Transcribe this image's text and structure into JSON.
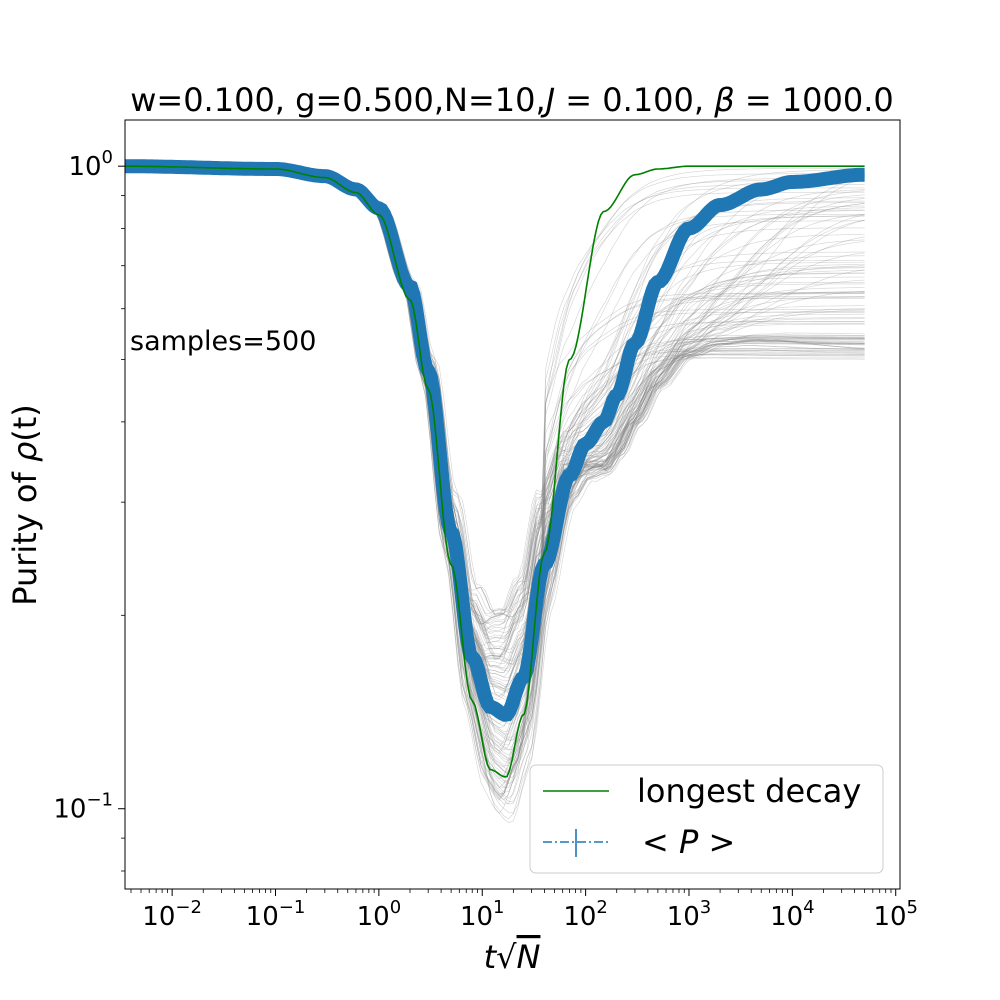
{
  "chart_data": {
    "type": "line",
    "title": "w=0.100, g=0.500,N=10,J = 0.100, β = 1000.0",
    "title_parts": {
      "a": "w=0.100, g=0.500,N=10,",
      "J": "J",
      "eq1": " = 0.100, ",
      "beta": "β",
      "eq2": " = 1000.0"
    },
    "xlabel": {
      "t": "t",
      "sqrt": "√",
      "N": "N"
    },
    "ylabel": {
      "text": "Purity of ",
      "rho": "ρ",
      "paren": "(t)"
    },
    "annotation": "samples=500",
    "x_scale": "log",
    "y_scale": "log",
    "xlim": [
      0.0035,
      110000
    ],
    "ylim": [
      0.075,
      1.18
    ],
    "x_ticks": [
      {
        "base": "10",
        "exp": "−2",
        "value": 0.01
      },
      {
        "base": "10",
        "exp": "−1",
        "value": 0.1
      },
      {
        "base": "10",
        "exp": "0",
        "value": 1
      },
      {
        "base": "10",
        "exp": "1",
        "value": 10
      },
      {
        "base": "10",
        "exp": "2",
        "value": 100
      },
      {
        "base": "10",
        "exp": "3",
        "value": 1000
      },
      {
        "base": "10",
        "exp": "4",
        "value": 10000
      },
      {
        "base": "10",
        "exp": "5",
        "value": 100000
      }
    ],
    "y_ticks": [
      {
        "base": "10",
        "exp": "0",
        "value": 1
      },
      {
        "base": "10",
        "exp": "−1",
        "value": 0.1
      }
    ],
    "grid": false,
    "legend_position": "bottom-right",
    "legend": [
      {
        "label": "longest decay",
        "series": "longest_decay"
      },
      {
        "label_parts": [
          "< ",
          "P",
          " >"
        ],
        "series": "mean_P"
      }
    ],
    "colors": {
      "longest_decay": "#008000",
      "mean_P": "#1f77b4",
      "samples": "#808080"
    },
    "series": {
      "longest_decay": {
        "x": [
          0.0035,
          0.1,
          0.3,
          0.6,
          1,
          2,
          3,
          5,
          8,
          12,
          17,
          25,
          40,
          70,
          150,
          300,
          500,
          1000,
          50000
        ],
        "y": [
          1.0,
          0.99,
          0.96,
          0.91,
          0.84,
          0.62,
          0.45,
          0.24,
          0.147,
          0.115,
          0.112,
          0.14,
          0.25,
          0.5,
          0.85,
          0.97,
          0.99,
          1.0,
          1.0
        ]
      },
      "mean_P": {
        "x": [
          0.0035,
          0.1,
          0.3,
          0.6,
          1,
          2,
          3,
          5,
          8,
          12,
          17,
          25,
          40,
          70,
          100,
          150,
          200,
          300,
          500,
          1000,
          2000,
          5000,
          10000,
          50000
        ],
        "y": [
          1.0,
          0.99,
          0.965,
          0.92,
          0.86,
          0.65,
          0.48,
          0.27,
          0.172,
          0.144,
          0.14,
          0.16,
          0.24,
          0.33,
          0.37,
          0.4,
          0.44,
          0.53,
          0.66,
          0.8,
          0.87,
          0.92,
          0.945,
          0.97
        ]
      }
    }
  }
}
